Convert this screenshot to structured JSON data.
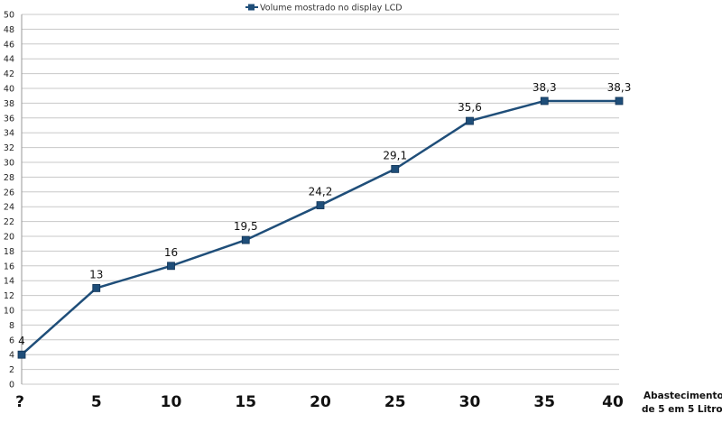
{
  "chart_data": {
    "type": "line",
    "legend": {
      "position": "top-center",
      "label": "Volume mostrado no display LCD"
    },
    "categories": [
      "?",
      "5",
      "10",
      "15",
      "20",
      "25",
      "30",
      "35",
      "40"
    ],
    "series": [
      {
        "name": "Volume mostrado no display LCD",
        "values": [
          4,
          13,
          16,
          19.5,
          24.2,
          29.1,
          35.6,
          38.3,
          38.3
        ],
        "labels": [
          "4",
          "13",
          "16",
          "19,5",
          "24,2",
          "29,1",
          "35,6",
          "38,3",
          "38,3"
        ],
        "color": "#1f4e79"
      }
    ],
    "xlabel": [
      "Abastecimento",
      "de 5 em 5 Litros"
    ],
    "ylabel": "",
    "ylim": [
      0,
      50
    ],
    "ytick_step": 2,
    "grid": true
  }
}
